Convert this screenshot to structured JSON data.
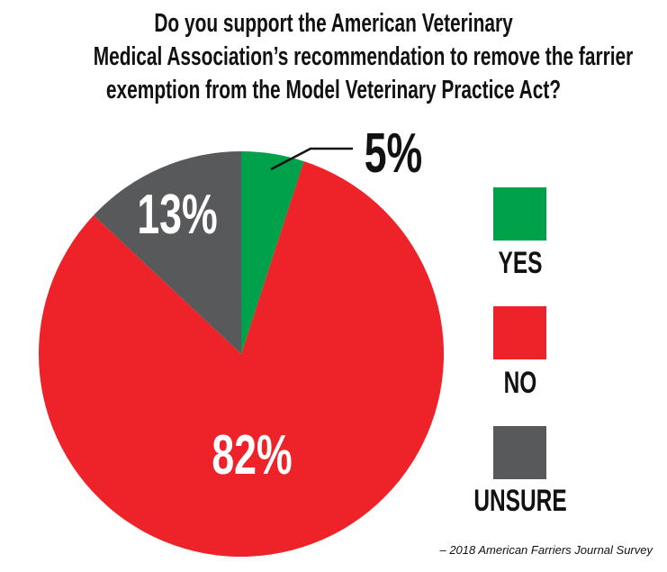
{
  "chart_data": {
    "type": "pie",
    "title_lines": [
      "Do you support the American Veterinary",
      "Medical Association’s recommendation to remove the farrier",
      "exemption from the Model Veterinary Practice Act?"
    ],
    "slices": [
      {
        "label": "YES",
        "value": 5,
        "display": "5%",
        "color": "#00a14b"
      },
      {
        "label": "NO",
        "value": 82,
        "display": "82%",
        "color": "#ee2229"
      },
      {
        "label": "UNSURE",
        "value": 13,
        "display": "13%",
        "color": "#58595b"
      }
    ],
    "legend_position": "right",
    "source": "– 2018 American Farriers Journal Survey"
  }
}
